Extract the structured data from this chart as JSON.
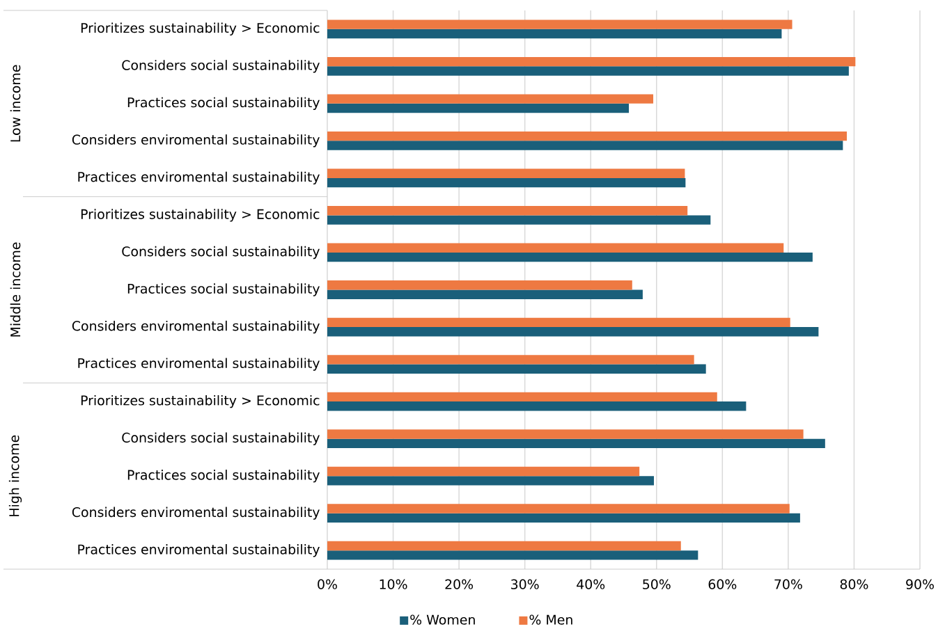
{
  "chart_data": {
    "type": "bar",
    "orientation": "horizontal",
    "categories": [
      "Prioritizes sustainability > Economic",
      "Considers social sustainability",
      "Practices social sustainability",
      "Considers enviromental sustainability",
      "Practices enviromental sustainability",
      "Prioritizes sustainability > Economic",
      "Considers social sustainability",
      "Practices social sustainability",
      "Considers enviromental sustainability",
      "Practices enviromental sustainability",
      "Prioritizes sustainability > Economic",
      "Considers social sustainability",
      "Practices social sustainability",
      "Considers enviromental sustainability",
      "Practices enviromental sustainability"
    ],
    "series": [
      {
        "name": "% Women",
        "color": "#1a5f7a",
        "values": [
          69.0,
          79.2,
          45.8,
          78.3,
          54.4,
          58.2,
          73.7,
          47.9,
          74.6,
          57.5,
          63.6,
          75.6,
          49.6,
          71.8,
          56.3
        ]
      },
      {
        "name": "% Men",
        "color": "#ee7942",
        "values": [
          70.6,
          80.2,
          49.5,
          78.9,
          54.3,
          54.7,
          69.3,
          46.3,
          70.3,
          55.7,
          59.2,
          72.3,
          47.4,
          70.2,
          53.7
        ]
      }
    ],
    "annotations": [
      "Low income",
      "Middle income",
      "High income"
    ],
    "xlim": [
      0,
      90
    ],
    "xticks": [
      {
        "value": 0,
        "label": "0%"
      },
      {
        "value": 10,
        "label": "10%"
      },
      {
        "value": 20,
        "label": "20%"
      },
      {
        "value": 30,
        "label": "30%"
      },
      {
        "value": 40,
        "label": "40%"
      },
      {
        "value": 50,
        "label": "50%"
      },
      {
        "value": 60,
        "label": "60%"
      },
      {
        "value": 70,
        "label": "70%"
      },
      {
        "value": 80,
        "label": "80%"
      },
      {
        "value": 90,
        "label": "90%"
      }
    ],
    "grid": "x",
    "legend": "bottom"
  }
}
